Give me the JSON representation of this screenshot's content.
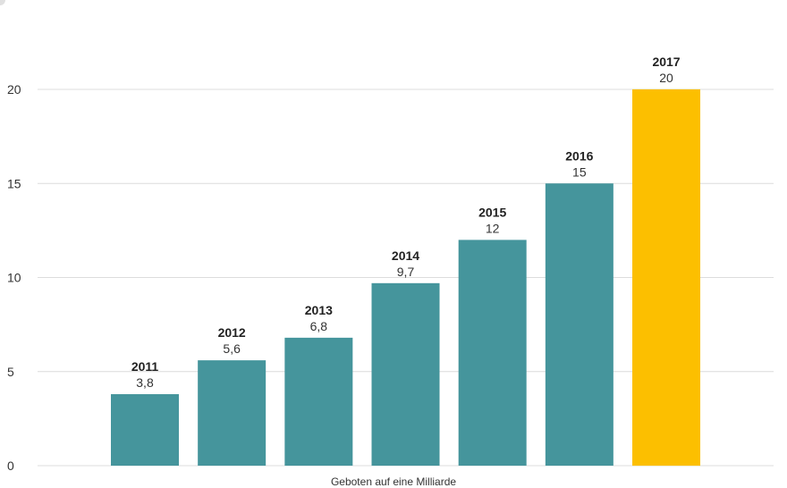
{
  "chart_data": {
    "type": "bar",
    "categories": [
      "2011",
      "2012",
      "2013",
      "2014",
      "2015",
      "2016",
      "2017"
    ],
    "values": [
      3.8,
      5.6,
      6.8,
      9.7,
      12,
      15,
      20
    ],
    "value_labels": [
      "3,8",
      "5,6",
      "6,8",
      "9,7",
      "12",
      "15",
      "20"
    ],
    "y_ticks": [
      0,
      5,
      10,
      15,
      20
    ],
    "ylim": [
      0,
      20
    ],
    "grid": true,
    "xlabel": "Geboten auf eine Milliarde",
    "title": "",
    "colors": {
      "bar": "#45959c",
      "highlight": "#fcbf00",
      "grid": "#dcdcdc",
      "tick_text": "#333333",
      "label_text": "#222222"
    },
    "highlight_index": 6
  }
}
